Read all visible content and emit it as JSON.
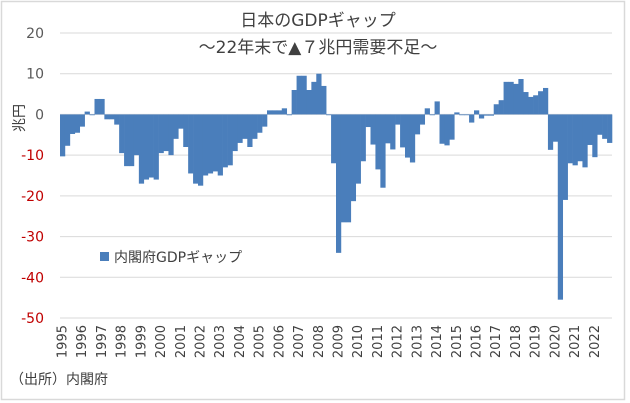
{
  "chart_data": {
    "type": "bar",
    "title": "日本のGDPギャップ",
    "subtitle": "～22年末で▲７兆円需要不足～",
    "ylabel": "兆円",
    "xlabel": "",
    "ylim": [
      -50,
      20
    ],
    "yticks": [
      20,
      10,
      0,
      -10,
      -20,
      -30,
      -40,
      -50
    ],
    "negative_tick_color": "#C00000",
    "positive_tick_color": "#595959",
    "grid": true,
    "legend_position": "center-left",
    "bar_color": "#4A7EBB",
    "frequency": "quarterly",
    "xtick_labels": [
      "1995",
      "1996",
      "1997",
      "1998",
      "1999",
      "2000",
      "2001",
      "2002",
      "2003",
      "2004",
      "2005",
      "2006",
      "2007",
      "2008",
      "2009",
      "2010",
      "2011",
      "2012",
      "2013",
      "2014",
      "2015",
      "2016",
      "2017",
      "2018",
      "2019",
      "2020",
      "2021",
      "2022"
    ],
    "series": [
      {
        "name": "内閣府GDPギャップ",
        "values": [
          -10.3,
          -7.7,
          -4.8,
          -4.5,
          -3,
          0.7,
          0,
          3.8,
          3.8,
          -1.2,
          -1.2,
          -2.5,
          -9.5,
          -12.7,
          -12.7,
          -10,
          -17,
          -16,
          -15.5,
          -16,
          -9.5,
          -9,
          -10,
          -6,
          -3.5,
          -8,
          -14.5,
          -17,
          -17.5,
          -15,
          -14.5,
          -14,
          -15,
          -13,
          -12.5,
          -9,
          -7,
          -6,
          -8,
          -6,
          -4.5,
          -3,
          1,
          1,
          1,
          1.5,
          0,
          6,
          9.5,
          9.5,
          6,
          8,
          10,
          7,
          0,
          -12,
          -34,
          -26.5,
          -26.5,
          -21.3,
          -17,
          -11.5,
          -3.1,
          -7.4,
          -13.5,
          -18,
          -7.1,
          -8.6,
          -2.5,
          -8.1,
          -10.6,
          -11.8,
          -4.9,
          -2.5,
          1.5,
          0,
          3.2,
          -7.2,
          -7.6,
          -6.2,
          0.5,
          0,
          0,
          -2,
          1,
          -1,
          -0.3,
          -0.3,
          2.5,
          3.5,
          8,
          8,
          7.5,
          8.7,
          5.5,
          4.3,
          4.7,
          5.7,
          6.5,
          -8.7,
          -6.7,
          -45.5,
          -21,
          -12,
          -12.5,
          -11.5,
          -13,
          -7.5,
          -10.5,
          -5,
          -6,
          -7
        ]
      }
    ]
  },
  "source_note": "（出所）内閣府"
}
